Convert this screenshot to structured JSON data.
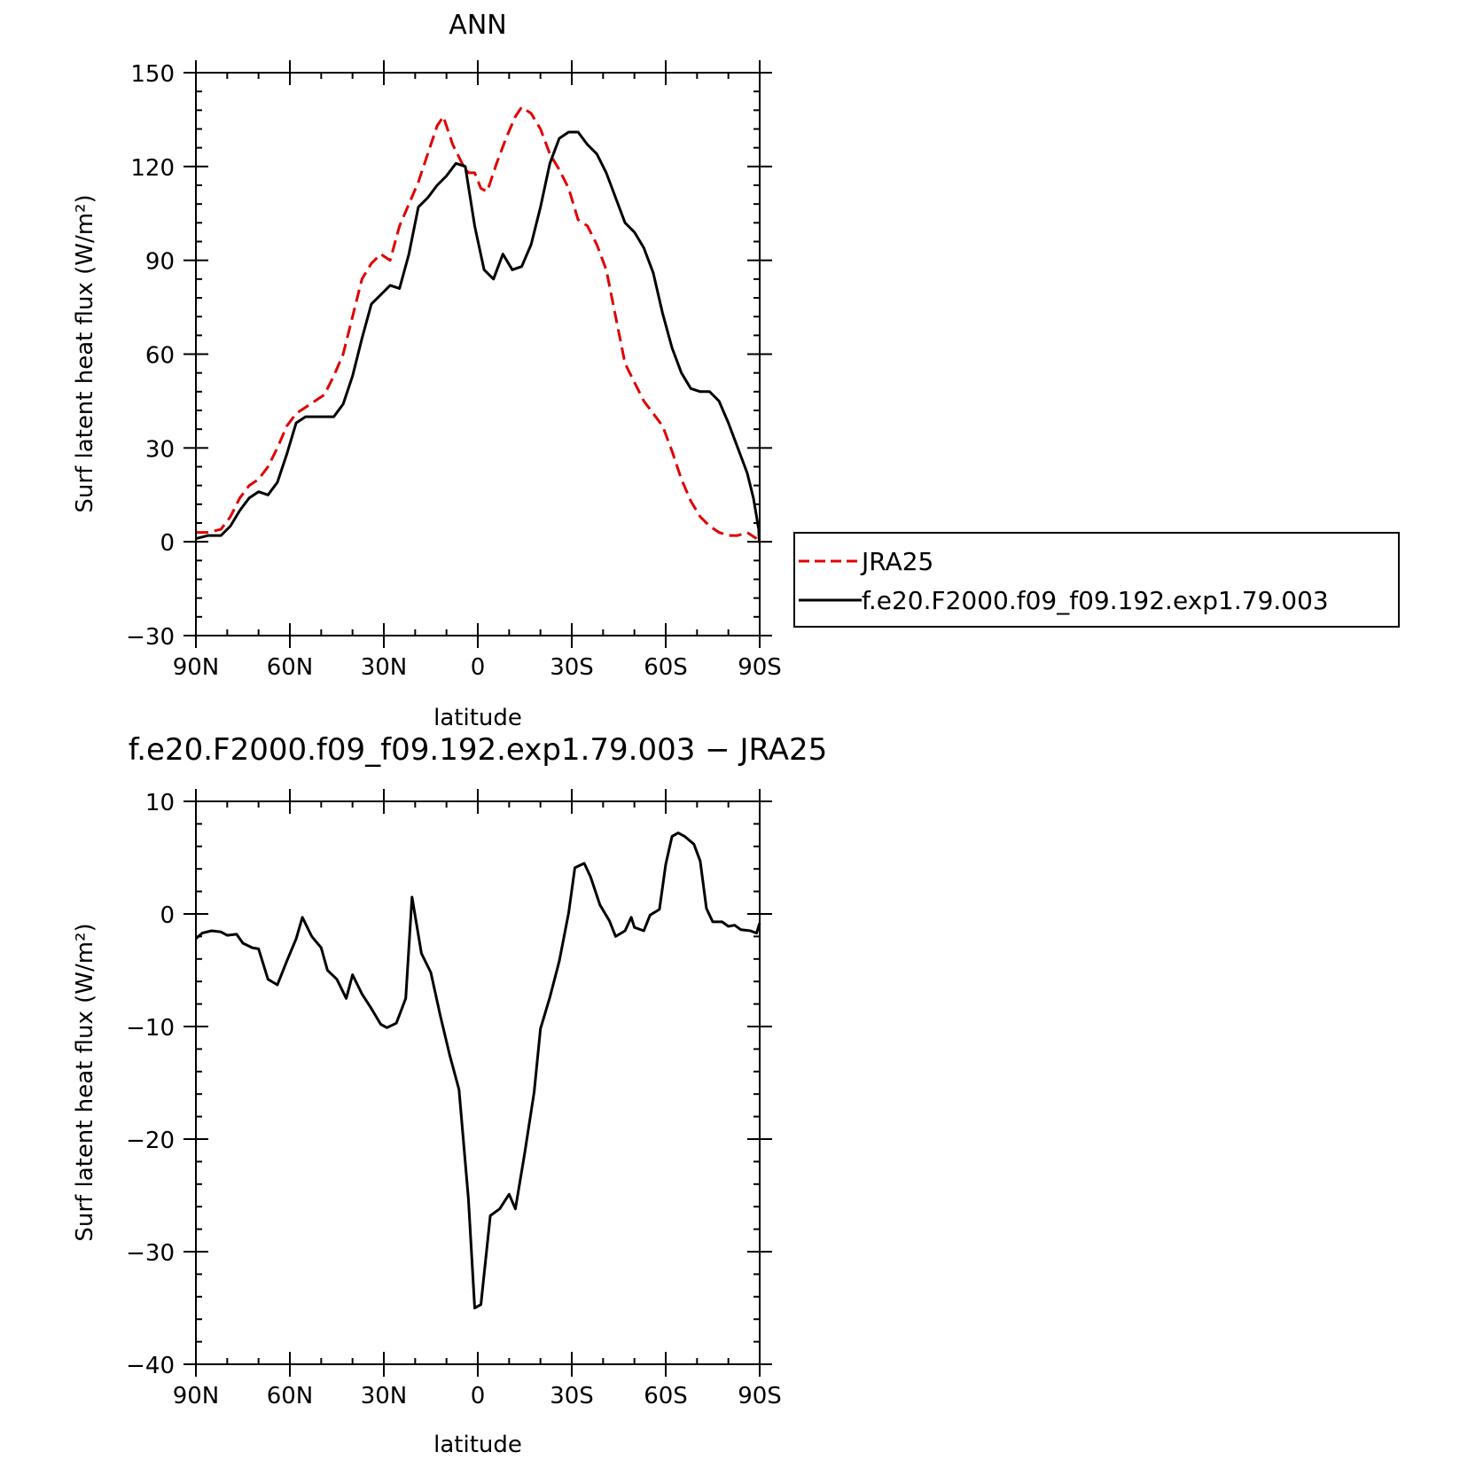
{
  "chart_data": [
    {
      "type": "line",
      "title": "ANN",
      "xlabel": "latitude",
      "ylabel": "Surf latent heat flux (W/m²)",
      "xlim": [
        90,
        -90
      ],
      "ylim": [
        -30,
        150
      ],
      "x_ticks": [
        90,
        60,
        30,
        0,
        -30,
        -60,
        -90
      ],
      "x_tick_labels": [
        "90N",
        "60N",
        "30N",
        "0",
        "30S",
        "60S",
        "90S"
      ],
      "y_ticks": [
        -30,
        0,
        30,
        60,
        90,
        120,
        150
      ],
      "y_tick_labels": [
        "−30",
        "0",
        "30",
        "60",
        "90",
        "120",
        "150"
      ],
      "legend_position": "right",
      "series": [
        {
          "name": "JRA25",
          "color": "#e00000",
          "dash": true,
          "points": [
            [
              90,
              3
            ],
            [
              86,
              3
            ],
            [
              82,
              4
            ],
            [
              79,
              8
            ],
            [
              76,
              14
            ],
            [
              73,
              18
            ],
            [
              70,
              20
            ],
            [
              67,
              24
            ],
            [
              64,
              30
            ],
            [
              61,
              37
            ],
            [
              58,
              41
            ],
            [
              55,
              43
            ],
            [
              52,
              45
            ],
            [
              49,
              47
            ],
            [
              46,
              53
            ],
            [
              43,
              60
            ],
            [
              40,
              72
            ],
            [
              37,
              84
            ],
            [
              34,
              89
            ],
            [
              31,
              92
            ],
            [
              28,
              90
            ],
            [
              25,
              101
            ],
            [
              22,
              108
            ],
            [
              19,
              115
            ],
            [
              16,
              124
            ],
            [
              13,
              133
            ],
            [
              11,
              136
            ],
            [
              8,
              127
            ],
            [
              5,
              121
            ],
            [
              3,
              118
            ],
            [
              1,
              118
            ],
            [
              -1,
              113
            ],
            [
              -3,
              112
            ],
            [
              -6,
              121
            ],
            [
              -9,
              129
            ],
            [
              -12,
              136
            ],
            [
              -14,
              139
            ],
            [
              -17,
              137
            ],
            [
              -20,
              132
            ],
            [
              -23,
              124
            ],
            [
              -26,
              119
            ],
            [
              -29,
              113
            ],
            [
              -32,
              103
            ],
            [
              -35,
              101
            ],
            [
              -38,
              95
            ],
            [
              -41,
              87
            ],
            [
              -44,
              72
            ],
            [
              -47,
              57
            ],
            [
              -50,
              51
            ],
            [
              -53,
              45
            ],
            [
              -56,
              41
            ],
            [
              -59,
              37
            ],
            [
              -62,
              29
            ],
            [
              -65,
              20
            ],
            [
              -68,
              13
            ],
            [
              -71,
              8
            ],
            [
              -74,
              5
            ],
            [
              -77,
              3
            ],
            [
              -80,
              2
            ],
            [
              -83,
              2
            ],
            [
              -86,
              3
            ],
            [
              -89,
              1
            ]
          ]
        },
        {
          "name": "f.e20.F2000.f09_f09.192.exp1.79.003",
          "color": "#000000",
          "dash": false,
          "points": [
            [
              90,
              1
            ],
            [
              86,
              2
            ],
            [
              82,
              2
            ],
            [
              79,
              5
            ],
            [
              76,
              10
            ],
            [
              73,
              14
            ],
            [
              70,
              16
            ],
            [
              67,
              15
            ],
            [
              64,
              19
            ],
            [
              61,
              28
            ],
            [
              58,
              38
            ],
            [
              55,
              40
            ],
            [
              52,
              40
            ],
            [
              49,
              40
            ],
            [
              46,
              40
            ],
            [
              43,
              44
            ],
            [
              40,
              53
            ],
            [
              37,
              65
            ],
            [
              34,
              76
            ],
            [
              31,
              79
            ],
            [
              28,
              82
            ],
            [
              25,
              81
            ],
            [
              22,
              92
            ],
            [
              19,
              107
            ],
            [
              16,
              110
            ],
            [
              13,
              114
            ],
            [
              10,
              117
            ],
            [
              7,
              121
            ],
            [
              4,
              120
            ],
            [
              1,
              101
            ],
            [
              -2,
              87
            ],
            [
              -5,
              84
            ],
            [
              -8,
              92
            ],
            [
              -11,
              87
            ],
            [
              -14,
              88
            ],
            [
              -17,
              95
            ],
            [
              -20,
              107
            ],
            [
              -23,
              121
            ],
            [
              -26,
              129
            ],
            [
              -29,
              131
            ],
            [
              -32,
              131
            ],
            [
              -35,
              127
            ],
            [
              -38,
              124
            ],
            [
              -41,
              118
            ],
            [
              -44,
              110
            ],
            [
              -47,
              102
            ],
            [
              -50,
              99
            ],
            [
              -53,
              94
            ],
            [
              -56,
              86
            ],
            [
              -59,
              73
            ],
            [
              -62,
              62
            ],
            [
              -65,
              54
            ],
            [
              -68,
              49
            ],
            [
              -71,
              48
            ],
            [
              -74,
              48
            ],
            [
              -77,
              45
            ],
            [
              -80,
              38
            ],
            [
              -83,
              30
            ],
            [
              -86,
              22
            ],
            [
              -88,
              14
            ],
            [
              -89,
              8
            ],
            [
              -89.5,
              5
            ],
            [
              -89.7,
              4
            ],
            [
              -89.8,
              1
            ],
            [
              -89.9,
              0
            ],
            [
              -90,
              0
            ]
          ]
        }
      ]
    },
    {
      "type": "line",
      "title": "f.e20.F2000.f09_f09.192.exp1.79.003 − JRA25",
      "xlabel": "latitude",
      "ylabel": "Surf latent heat flux (W/m²)",
      "xlim": [
        90,
        -90
      ],
      "ylim": [
        -40,
        10
      ],
      "x_ticks": [
        90,
        60,
        30,
        0,
        -30,
        -60,
        -90
      ],
      "x_tick_labels": [
        "90N",
        "60N",
        "30N",
        "0",
        "30S",
        "60S",
        "90S"
      ],
      "y_ticks": [
        -40,
        -30,
        -20,
        -10,
        0,
        10
      ],
      "y_tick_labels": [
        "−40",
        "−30",
        "−20",
        "−10",
        "0",
        "10"
      ],
      "series": [
        {
          "name": "",
          "color": "#000000",
          "dash": false,
          "points": [
            [
              90,
              -2.2
            ],
            [
              88,
              -1.7
            ],
            [
              85,
              -1.5
            ],
            [
              82,
              -1.6
            ],
            [
              80,
              -1.9
            ],
            [
              77,
              -1.8
            ],
            [
              75,
              -2.6
            ],
            [
              72,
              -3.0
            ],
            [
              70,
              -3.1
            ],
            [
              67,
              -5.8
            ],
            [
              64,
              -6.3
            ],
            [
              61,
              -4.2
            ],
            [
              58,
              -2.2
            ],
            [
              56,
              -0.3
            ],
            [
              53,
              -2.0
            ],
            [
              50,
              -3.0
            ],
            [
              48,
              -5.0
            ],
            [
              45,
              -5.8
            ],
            [
              42,
              -7.5
            ],
            [
              40,
              -5.4
            ],
            [
              37,
              -7.1
            ],
            [
              34,
              -8.4
            ],
            [
              31,
              -9.8
            ],
            [
              29,
              -10.1
            ],
            [
              26,
              -9.7
            ],
            [
              23,
              -7.5
            ],
            [
              21,
              1.5
            ],
            [
              18,
              -3.5
            ],
            [
              15,
              -5.2
            ],
            [
              12,
              -9.0
            ],
            [
              9,
              -12.5
            ],
            [
              6,
              -15.6
            ],
            [
              3,
              -25.3
            ],
            [
              1,
              -35.0
            ],
            [
              -1,
              -34.7
            ],
            [
              -4,
              -26.8
            ],
            [
              -7,
              -26.2
            ],
            [
              -10,
              -24.9
            ],
            [
              -12,
              -26.2
            ],
            [
              -15,
              -21.2
            ],
            [
              -18,
              -15.8
            ],
            [
              -20,
              -10.2
            ],
            [
              -23,
              -7.4
            ],
            [
              -26,
              -4.2
            ],
            [
              -29,
              0.1
            ],
            [
              -31,
              4.1
            ],
            [
              -34,
              4.5
            ],
            [
              -36,
              3.3
            ],
            [
              -39,
              0.8
            ],
            [
              -42,
              -0.6
            ],
            [
              -44,
              -2.0
            ],
            [
              -47,
              -1.5
            ],
            [
              -49,
              -0.3
            ],
            [
              -50,
              -1.2
            ],
            [
              -53,
              -1.5
            ],
            [
              -55,
              -0.1
            ],
            [
              -58,
              0.4
            ],
            [
              -60,
              4.4
            ],
            [
              -62,
              6.9
            ],
            [
              -64,
              7.2
            ],
            [
              -66,
              6.9
            ],
            [
              -69,
              6.2
            ],
            [
              -71,
              4.7
            ],
            [
              -73,
              0.5
            ],
            [
              -75,
              -0.7
            ],
            [
              -78,
              -0.7
            ],
            [
              -80,
              -1.1
            ],
            [
              -82,
              -1.0
            ],
            [
              -84,
              -1.4
            ],
            [
              -87,
              -1.5
            ],
            [
              -89,
              -1.7
            ],
            [
              -90,
              -0.8
            ]
          ]
        }
      ]
    }
  ]
}
